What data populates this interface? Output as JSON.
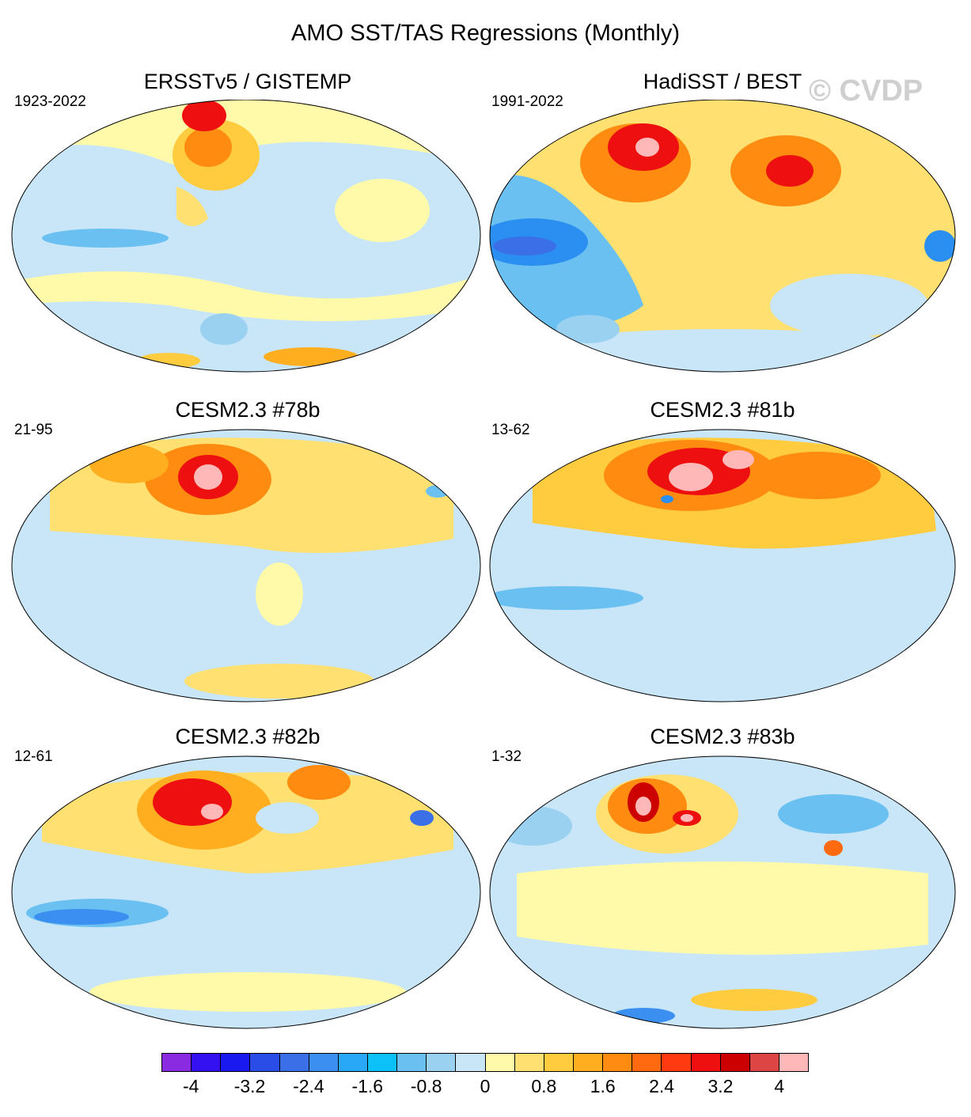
{
  "title": "AMO SST/TAS Regressions (Monthly)",
  "watermark": "© CVDP",
  "panels": [
    {
      "title": "ERSSTv5 / GISTEMP",
      "period": "1923-2022"
    },
    {
      "title": "HadiSST / BEST",
      "period": "1991-2022"
    },
    {
      "title": "CESM2.3 #78b",
      "period": "21-95"
    },
    {
      "title": "CESM2.3 #81b",
      "period": "13-62"
    },
    {
      "title": "CESM2.3 #82b",
      "period": "12-61"
    },
    {
      "title": "CESM2.3 #83b",
      "period": "1-32"
    }
  ],
  "colorbar": {
    "colors": [
      "#8a2be2",
      "#3311f0",
      "#1a1af0",
      "#2a4de8",
      "#3a6fe8",
      "#3a8ff0",
      "#2aa8f8",
      "#0cc0f8",
      "#6ac0f0",
      "#9ad0f0",
      "#c8e6f8",
      "#fffaaa",
      "#ffe070",
      "#ffcc40",
      "#ffae20",
      "#ff8c10",
      "#ff6a10",
      "#ff3a10",
      "#ee1010",
      "#cc0000",
      "#dd4444",
      "#ffb8b8"
    ],
    "labels": [
      "-4",
      "-3.2",
      "-2.4",
      "-1.6",
      "-0.8",
      "0",
      "0.8",
      "1.6",
      "2.4",
      "3.2",
      "4"
    ]
  }
}
